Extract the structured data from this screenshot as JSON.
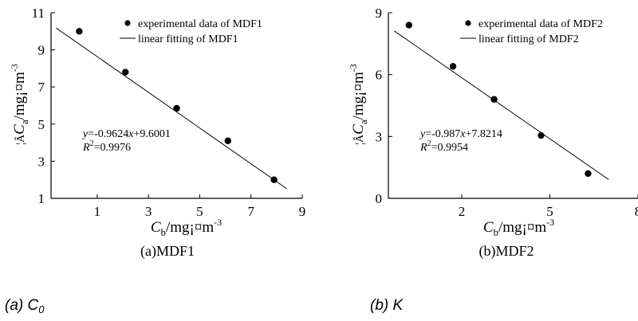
{
  "chart_data": [
    {
      "type": "scatter",
      "xlabel_main": "C",
      "xlabel_sub": "b",
      "xlabel_unit": "/mg¡¤m",
      "xlabel_exp": "-3",
      "ylabel_main": "C",
      "ylabel_sub": "a",
      "ylabel_unit": "/mg¡¤m",
      "ylabel_exp": "-3",
      "ylabel_prefix": "¦Â",
      "xlim": [
        -0.8,
        9
      ],
      "ylim": [
        1,
        11
      ],
      "xticks": [
        1,
        3,
        5,
        7,
        9
      ],
      "yticks": [
        1,
        3,
        5,
        7,
        9,
        11
      ],
      "series": [
        {
          "name": "experimental data of MDF1",
          "x": [
            0.3,
            2.1,
            4.1,
            6.1,
            7.9
          ],
          "y": [
            10.0,
            7.8,
            5.85,
            4.1,
            2.0
          ]
        },
        {
          "name": "linear fitting of MDF1",
          "slope": -0.9624,
          "intercept": 9.6001,
          "x_range": [
            -0.6,
            8.4
          ]
        }
      ],
      "equation": {
        "y": "y",
        "eq1": "=-0.9624",
        "x": "x",
        "eq2": "+9.6001",
        "r": "R",
        "r_exp": "2",
        "r_val": "=0.9976"
      },
      "caption": "(a)MDF1",
      "legend_position": "top-right"
    },
    {
      "type": "scatter",
      "xlabel_main": "C",
      "xlabel_sub": "b",
      "xlabel_unit": "/mg¡¤m",
      "xlabel_exp": "-3",
      "ylabel_main": "C",
      "ylabel_sub": "a",
      "ylabel_unit": "/mg¡¤m",
      "ylabel_exp": "-3",
      "ylabel_prefix": "¦Â",
      "xlim": [
        -0.5,
        8
      ],
      "ylim": [
        0,
        9
      ],
      "xticks": [
        2,
        5,
        8
      ],
      "yticks": [
        0,
        3,
        6,
        9
      ],
      "series": [
        {
          "name": "experimental data of MDF2",
          "x": [
            0.2,
            1.7,
            3.1,
            4.7,
            6.3
          ],
          "y": [
            8.4,
            6.4,
            4.8,
            3.05,
            1.2
          ]
        },
        {
          "name": "linear fitting of MDF2",
          "slope": -0.987,
          "intercept": 7.8214,
          "x_range": [
            -0.3,
            7.0
          ]
        }
      ],
      "equation": {
        "y": "y",
        "eq1": "=-0.987",
        "x": "x",
        "eq2": "+7.8214",
        "r": "R",
        "r_exp": "2",
        "r_val": "=0.9954"
      },
      "caption": "(b)MDF2",
      "legend_position": "top-right"
    }
  ],
  "panel_labels": [
    {
      "text": "(a) C",
      "sub": "0"
    },
    {
      "text": "(b) K",
      "sub": ""
    }
  ]
}
